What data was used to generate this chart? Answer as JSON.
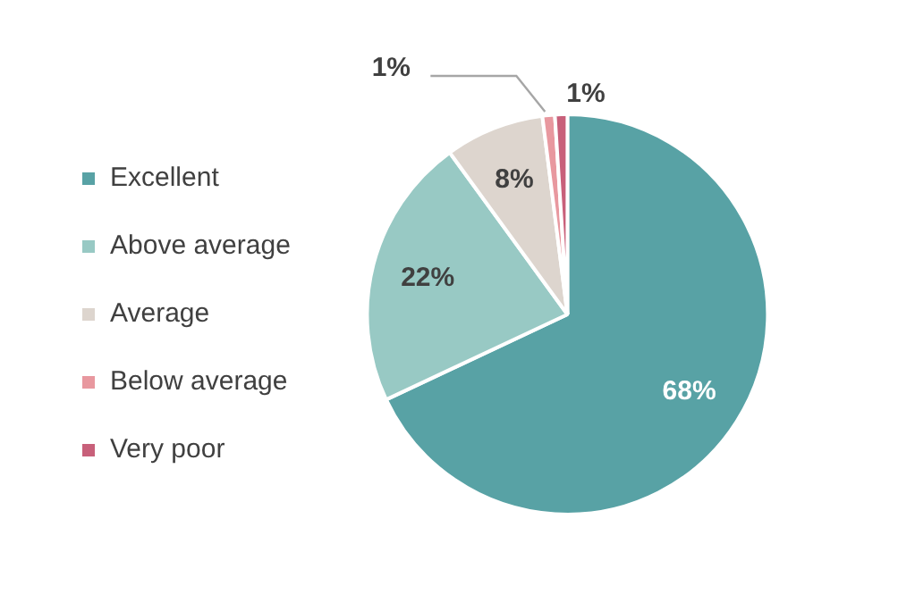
{
  "chart_data": {
    "type": "pie",
    "categories": [
      "Excellent",
      "Above average",
      "Average",
      "Below average",
      "Very poor"
    ],
    "values": [
      68,
      22,
      8,
      1,
      1
    ],
    "colors": [
      "#58a2a5",
      "#98c9c4",
      "#ddd5ce",
      "#e8989f",
      "#c8607a"
    ],
    "value_labels": [
      "68%",
      "22%",
      "8%",
      "1%",
      "1%"
    ],
    "legend": "left"
  }
}
